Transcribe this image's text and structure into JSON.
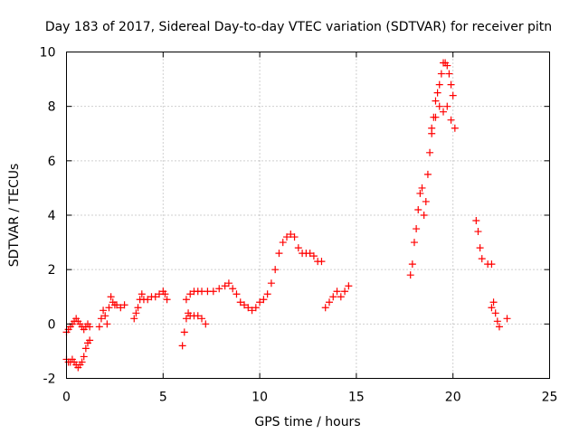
{
  "chart_data": {
    "type": "scatter",
    "title": "Day 183 of 2017, Sidereal Day-to-day VTEC variation (SDTVAR) for receiver pitn",
    "xlabel": "GPS time / hours",
    "ylabel": "SDTVAR / TECUs",
    "xlim": [
      0,
      25
    ],
    "ylim": [
      -2,
      10
    ],
    "xticks": [
      0,
      5,
      10,
      15,
      20,
      25
    ],
    "yticks": [
      -2,
      0,
      2,
      4,
      6,
      8,
      10
    ],
    "xtick_labels": [
      "0",
      "5",
      "10",
      "15",
      "20",
      "25"
    ],
    "ytick_labels": [
      "-2",
      "0",
      "2",
      "4",
      "6",
      "8",
      "10"
    ],
    "grid": true,
    "legend": "none",
    "marker": "+",
    "color": "#ff0000",
    "series": [
      {
        "name": "SDTVAR",
        "x": [
          0.0,
          0.1,
          0.2,
          0.3,
          0.4,
          0.5,
          0.6,
          0.7,
          0.8,
          0.9,
          1.0,
          1.1,
          1.2,
          0.0,
          0.1,
          0.2,
          0.3,
          0.4,
          0.5,
          0.6,
          0.7,
          0.8,
          0.9,
          1.0,
          1.1,
          1.2,
          1.7,
          1.8,
          1.9,
          2.0,
          2.1,
          2.2,
          2.3,
          2.4,
          2.5,
          2.6,
          2.8,
          3.0,
          3.5,
          3.6,
          3.7,
          3.8,
          3.9,
          4.0,
          4.2,
          4.4,
          4.6,
          4.8,
          5.0,
          5.1,
          5.2,
          6.0,
          6.1,
          6.2,
          6.3,
          6.4,
          6.6,
          6.8,
          7.0,
          7.2,
          6.2,
          6.4,
          6.6,
          6.8,
          7.0,
          7.3,
          7.6,
          7.9,
          8.2,
          8.4,
          8.6,
          8.8,
          9.0,
          9.2,
          9.4,
          9.6,
          9.8,
          10.0,
          10.2,
          10.4,
          10.6,
          10.8,
          11.0,
          11.2,
          11.4,
          11.6,
          11.8,
          12.0,
          12.2,
          12.4,
          12.6,
          12.8,
          13.0,
          13.2,
          13.4,
          13.6,
          13.8,
          14.0,
          14.2,
          14.4,
          14.6,
          17.8,
          17.9,
          18.0,
          18.1,
          18.2,
          18.3,
          18.4,
          18.5,
          18.6,
          18.7,
          18.8,
          18.9,
          19.0,
          19.1,
          19.2,
          19.3,
          19.4,
          19.5,
          19.6,
          19.7,
          19.8,
          19.9,
          20.0,
          18.9,
          19.1,
          19.3,
          19.5,
          19.7,
          19.9,
          20.1,
          21.2,
          21.3,
          21.4,
          21.5,
          21.8,
          22.0,
          22.0,
          22.1,
          22.2,
          22.3,
          22.4,
          22.8
        ],
        "y": [
          -0.3,
          -0.2,
          -0.1,
          0.0,
          0.1,
          0.2,
          0.1,
          0.0,
          -0.1,
          -0.2,
          -0.1,
          0.0,
          -0.1,
          -1.3,
          -1.4,
          -1.4,
          -1.3,
          -1.4,
          -1.5,
          -1.6,
          -1.5,
          -1.4,
          -1.2,
          -0.9,
          -0.7,
          -0.6,
          -0.1,
          0.2,
          0.5,
          0.3,
          0.0,
          0.6,
          1.0,
          0.8,
          0.7,
          0.7,
          0.6,
          0.7,
          0.2,
          0.4,
          0.6,
          0.9,
          1.1,
          0.9,
          0.9,
          1.0,
          1.0,
          1.1,
          1.2,
          1.1,
          0.9,
          -0.8,
          -0.3,
          0.2,
          0.4,
          0.3,
          0.3,
          0.3,
          0.2,
          0.0,
          0.9,
          1.1,
          1.2,
          1.2,
          1.2,
          1.2,
          1.2,
          1.3,
          1.4,
          1.5,
          1.3,
          1.1,
          0.8,
          0.7,
          0.6,
          0.5,
          0.6,
          0.8,
          0.9,
          1.1,
          1.5,
          2.0,
          2.6,
          3.0,
          3.2,
          3.3,
          3.2,
          2.8,
          2.6,
          2.6,
          2.6,
          2.5,
          2.3,
          2.3,
          0.6,
          0.8,
          1.0,
          1.2,
          1.0,
          1.2,
          1.4,
          1.8,
          2.2,
          3.0,
          3.5,
          4.2,
          4.8,
          5.0,
          4.0,
          4.5,
          5.5,
          6.3,
          7.0,
          7.6,
          8.2,
          8.5,
          8.8,
          9.2,
          9.6,
          9.6,
          9.5,
          9.2,
          8.8,
          8.4,
          7.2,
          7.6,
          8.0,
          7.8,
          8.0,
          7.5,
          7.2,
          3.8,
          3.4,
          2.8,
          2.4,
          2.2,
          2.2,
          0.6,
          0.8,
          0.4,
          0.1,
          -0.1,
          0.2
        ]
      }
    ]
  }
}
